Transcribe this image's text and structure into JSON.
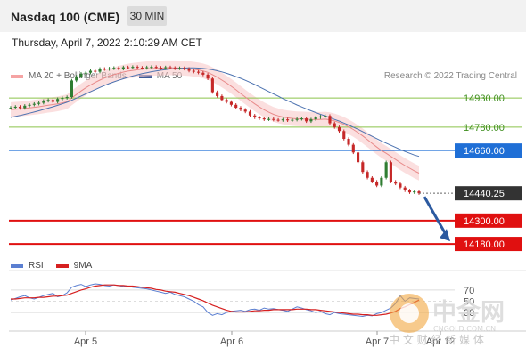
{
  "header": {
    "title": "Nasdaq 100 (CME)",
    "interval": "30 MIN",
    "datetime": "Thursday, April 7, 2022 2:10:29 AM CET"
  },
  "legend": {
    "ma20": "MA 20 + Bollinger Bands",
    "ma50": "MA 50",
    "credit": "Research © 2022 Trading Central"
  },
  "rsi_legend": {
    "rsi": "RSI",
    "ma": "9MA"
  },
  "watermark": {
    "cn": "中金网",
    "url": "CNGOLD.COM.CN",
    "slogan": "中 文 财 经 新 媒 体"
  },
  "colors": {
    "up": "#2f7d32",
    "down": "#c62828",
    "band": "#f9c9c9",
    "ma20": "#e88a8a",
    "ma50": "#4c72b0",
    "green_level": "#8bc34a",
    "blue_level": "#1f6fd6",
    "red_level": "#e01010",
    "price": "#333333",
    "rsi": "#5b7fd1",
    "rsi_ma": "#d62020"
  },
  "chart_data": [
    {
      "type": "candlestick",
      "title": "",
      "x_ticks": [
        "Apr 5",
        "Apr 6",
        "Apr 7",
        "Apr 12"
      ],
      "ylim": [
        14130,
        14990
      ],
      "current_price": {
        "label": "14440.25",
        "value": 14440.25
      },
      "levels": [
        {
          "label": "14930.00",
          "value": 14930,
          "kind": "resistance-green"
        },
        {
          "label": "14780.00",
          "value": 14780,
          "kind": "resistance-green"
        },
        {
          "label": "14660.00",
          "value": 14660,
          "kind": "pivot-blue"
        },
        {
          "label": "14300.00",
          "value": 14300,
          "kind": "support-red"
        },
        {
          "label": "14180.00",
          "value": 14180,
          "kind": "support-red"
        }
      ],
      "close_path": [
        14880,
        14885,
        14878,
        14890,
        14895,
        14900,
        14905,
        14915,
        14920,
        14910,
        14925,
        14930,
        14935,
        15020,
        15040,
        15055,
        15060,
        15070,
        15065,
        15080,
        15078,
        15082,
        15085,
        15080,
        15088,
        15085,
        15090,
        15086,
        15084,
        15088,
        15090,
        15086,
        15083,
        15088,
        15085,
        15082,
        15084,
        15080,
        15070,
        15065,
        15060,
        15050,
        15030,
        14960,
        14940,
        14920,
        14910,
        14895,
        14880,
        14870,
        14860,
        14840,
        14830,
        14825,
        14820,
        14822,
        14818,
        14816,
        14820,
        14815,
        14818,
        14822,
        14825,
        14810,
        14820,
        14830,
        14835,
        14838,
        14800,
        14780,
        14760,
        14720,
        14690,
        14650,
        14600,
        14550,
        14520,
        14500,
        14480,
        14520,
        14600,
        14500,
        14490,
        14470,
        14455,
        14445,
        14450,
        14440.25
      ],
      "ma20_path": [
        14870,
        14872,
        14874,
        14876,
        14879,
        14882,
        14885,
        14889,
        14893,
        14896,
        14900,
        14905,
        14911,
        14930,
        14948,
        14966,
        14982,
        14997,
        15010,
        15022,
        15033,
        15042,
        15050,
        15057,
        15063,
        15068,
        15072,
        15075,
        15078,
        15080,
        15082,
        15083,
        15084,
        15085,
        15085,
        15085,
        15084,
        15083,
        15081,
        15078,
        15074,
        15069,
        15062,
        15050,
        15037,
        15022,
        15007,
        14990,
        14972,
        14953,
        14935,
        14917,
        14900,
        14884,
        14869,
        14857,
        14846,
        14838,
        14832,
        14828,
        14825,
        14823,
        14822,
        14821,
        14820,
        14820,
        14820,
        14821,
        14818,
        14812,
        14804,
        14794,
        14782,
        14768,
        14752,
        14735,
        14716,
        14697,
        14678,
        14660,
        14646,
        14630,
        14614,
        14598,
        14583,
        14569,
        14556,
        14544
      ],
      "ma50_path": [
        14830,
        14835,
        14840,
        14846,
        14852,
        14858,
        14864,
        14871,
        14878,
        14885,
        14892,
        14900,
        14908,
        14918,
        14929,
        14940,
        14951,
        14962,
        14973,
        14984,
        14994,
        15004,
        15013,
        15021,
        15029,
        15036,
        15043,
        15049,
        15055,
        15060,
        15065,
        15069,
        15073,
        15076,
        15079,
        15081,
        15083,
        15084,
        15085,
        15085,
        15084,
        15082,
        15079,
        15075,
        15070,
        15064,
        15057,
        15049,
        15040,
        15031,
        15021,
        15010,
        14999,
        14987,
        14975,
        14963,
        14951,
        14939,
        14927,
        14916,
        14905,
        14894,
        14884,
        14874,
        14864,
        14855,
        14846,
        14838,
        14829,
        14820,
        14811,
        14801,
        14791,
        14780,
        14769,
        14757,
        14745,
        14733,
        14721,
        14709,
        14698,
        14687,
        14676,
        14665,
        14655,
        14646,
        14637,
        14630
      ]
    },
    {
      "type": "line",
      "title": "",
      "series_names": [
        "RSI",
        "9MA"
      ],
      "ylim": [
        0,
        100
      ],
      "y_ticks": [
        70,
        50,
        30
      ],
      "rsi": [
        52,
        55,
        58,
        60,
        56,
        54,
        57,
        60,
        62,
        64,
        58,
        60,
        65,
        75,
        78,
        80,
        76,
        79,
        81,
        80,
        78,
        77,
        79,
        78,
        76,
        77,
        75,
        74,
        73,
        72,
        70,
        68,
        66,
        64,
        66,
        62,
        60,
        58,
        54,
        50,
        44,
        40,
        30,
        25,
        28,
        26,
        30,
        32,
        33,
        34,
        32,
        35,
        36,
        34,
        38,
        36,
        37,
        35,
        34,
        32,
        36,
        40,
        38,
        35,
        33,
        30,
        32,
        28,
        26,
        30,
        28,
        27,
        26,
        25,
        24,
        23,
        25,
        24,
        28,
        30,
        34,
        38,
        46,
        60,
        50,
        56,
        55,
        54
      ],
      "rsi_ma": [
        54,
        54,
        55,
        56,
        56,
        56,
        57,
        57,
        58,
        59,
        59,
        60,
        61,
        64,
        67,
        70,
        72,
        75,
        77,
        78,
        79,
        79,
        79,
        78,
        78,
        77,
        77,
        76,
        75,
        74,
        73,
        71,
        70,
        68,
        67,
        66,
        64,
        62,
        60,
        57,
        54,
        51,
        47,
        43,
        40,
        37,
        34,
        32,
        31,
        31,
        31,
        32,
        33,
        33,
        34,
        34,
        35,
        35,
        35,
        35,
        35,
        36,
        36,
        36,
        35,
        35,
        34,
        33,
        32,
        31,
        30,
        29,
        28,
        27,
        27,
        26,
        26,
        25,
        25,
        26,
        27,
        29,
        32,
        37,
        40,
        44,
        48,
        52
      ]
    }
  ]
}
